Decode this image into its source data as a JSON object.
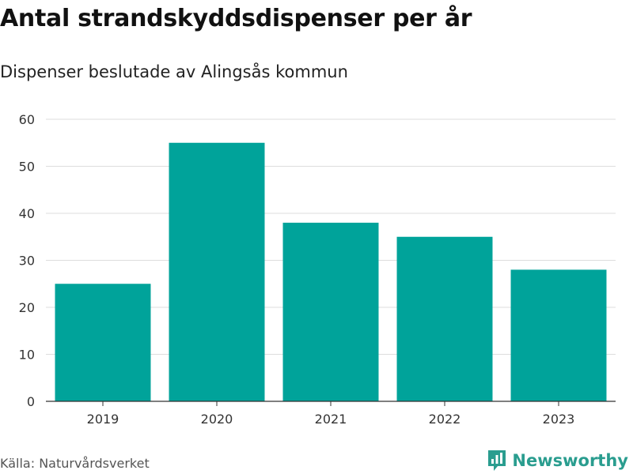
{
  "title": "Antal strandskyddsdispenser per år",
  "subtitle": "Dispenser beslutade av Alingsås kommun",
  "source": "Källa: Naturvårdsverket",
  "brand": {
    "name": "Newsworthy",
    "icon": "newsworthy-logo-icon",
    "color": "#2a9d8f"
  },
  "colors": {
    "bar": "#00a39a",
    "grid": "#dddddd",
    "axis": "#333333"
  },
  "chart_data": {
    "type": "bar",
    "title": "Antal strandskyddsdispenser per år",
    "subtitle": "Dispenser beslutade av Alingsås kommun",
    "categories": [
      "2019",
      "2020",
      "2021",
      "2022",
      "2023"
    ],
    "values": [
      25,
      55,
      38,
      35,
      28
    ],
    "xlabel": "",
    "ylabel": "",
    "ylim": [
      0,
      60
    ],
    "yticks": [
      0,
      10,
      20,
      30,
      40,
      50,
      60
    ],
    "ytick_labels": [
      "0",
      "10",
      "20",
      "30",
      "40",
      "50",
      "60"
    ],
    "grid": true,
    "legend": "none"
  }
}
